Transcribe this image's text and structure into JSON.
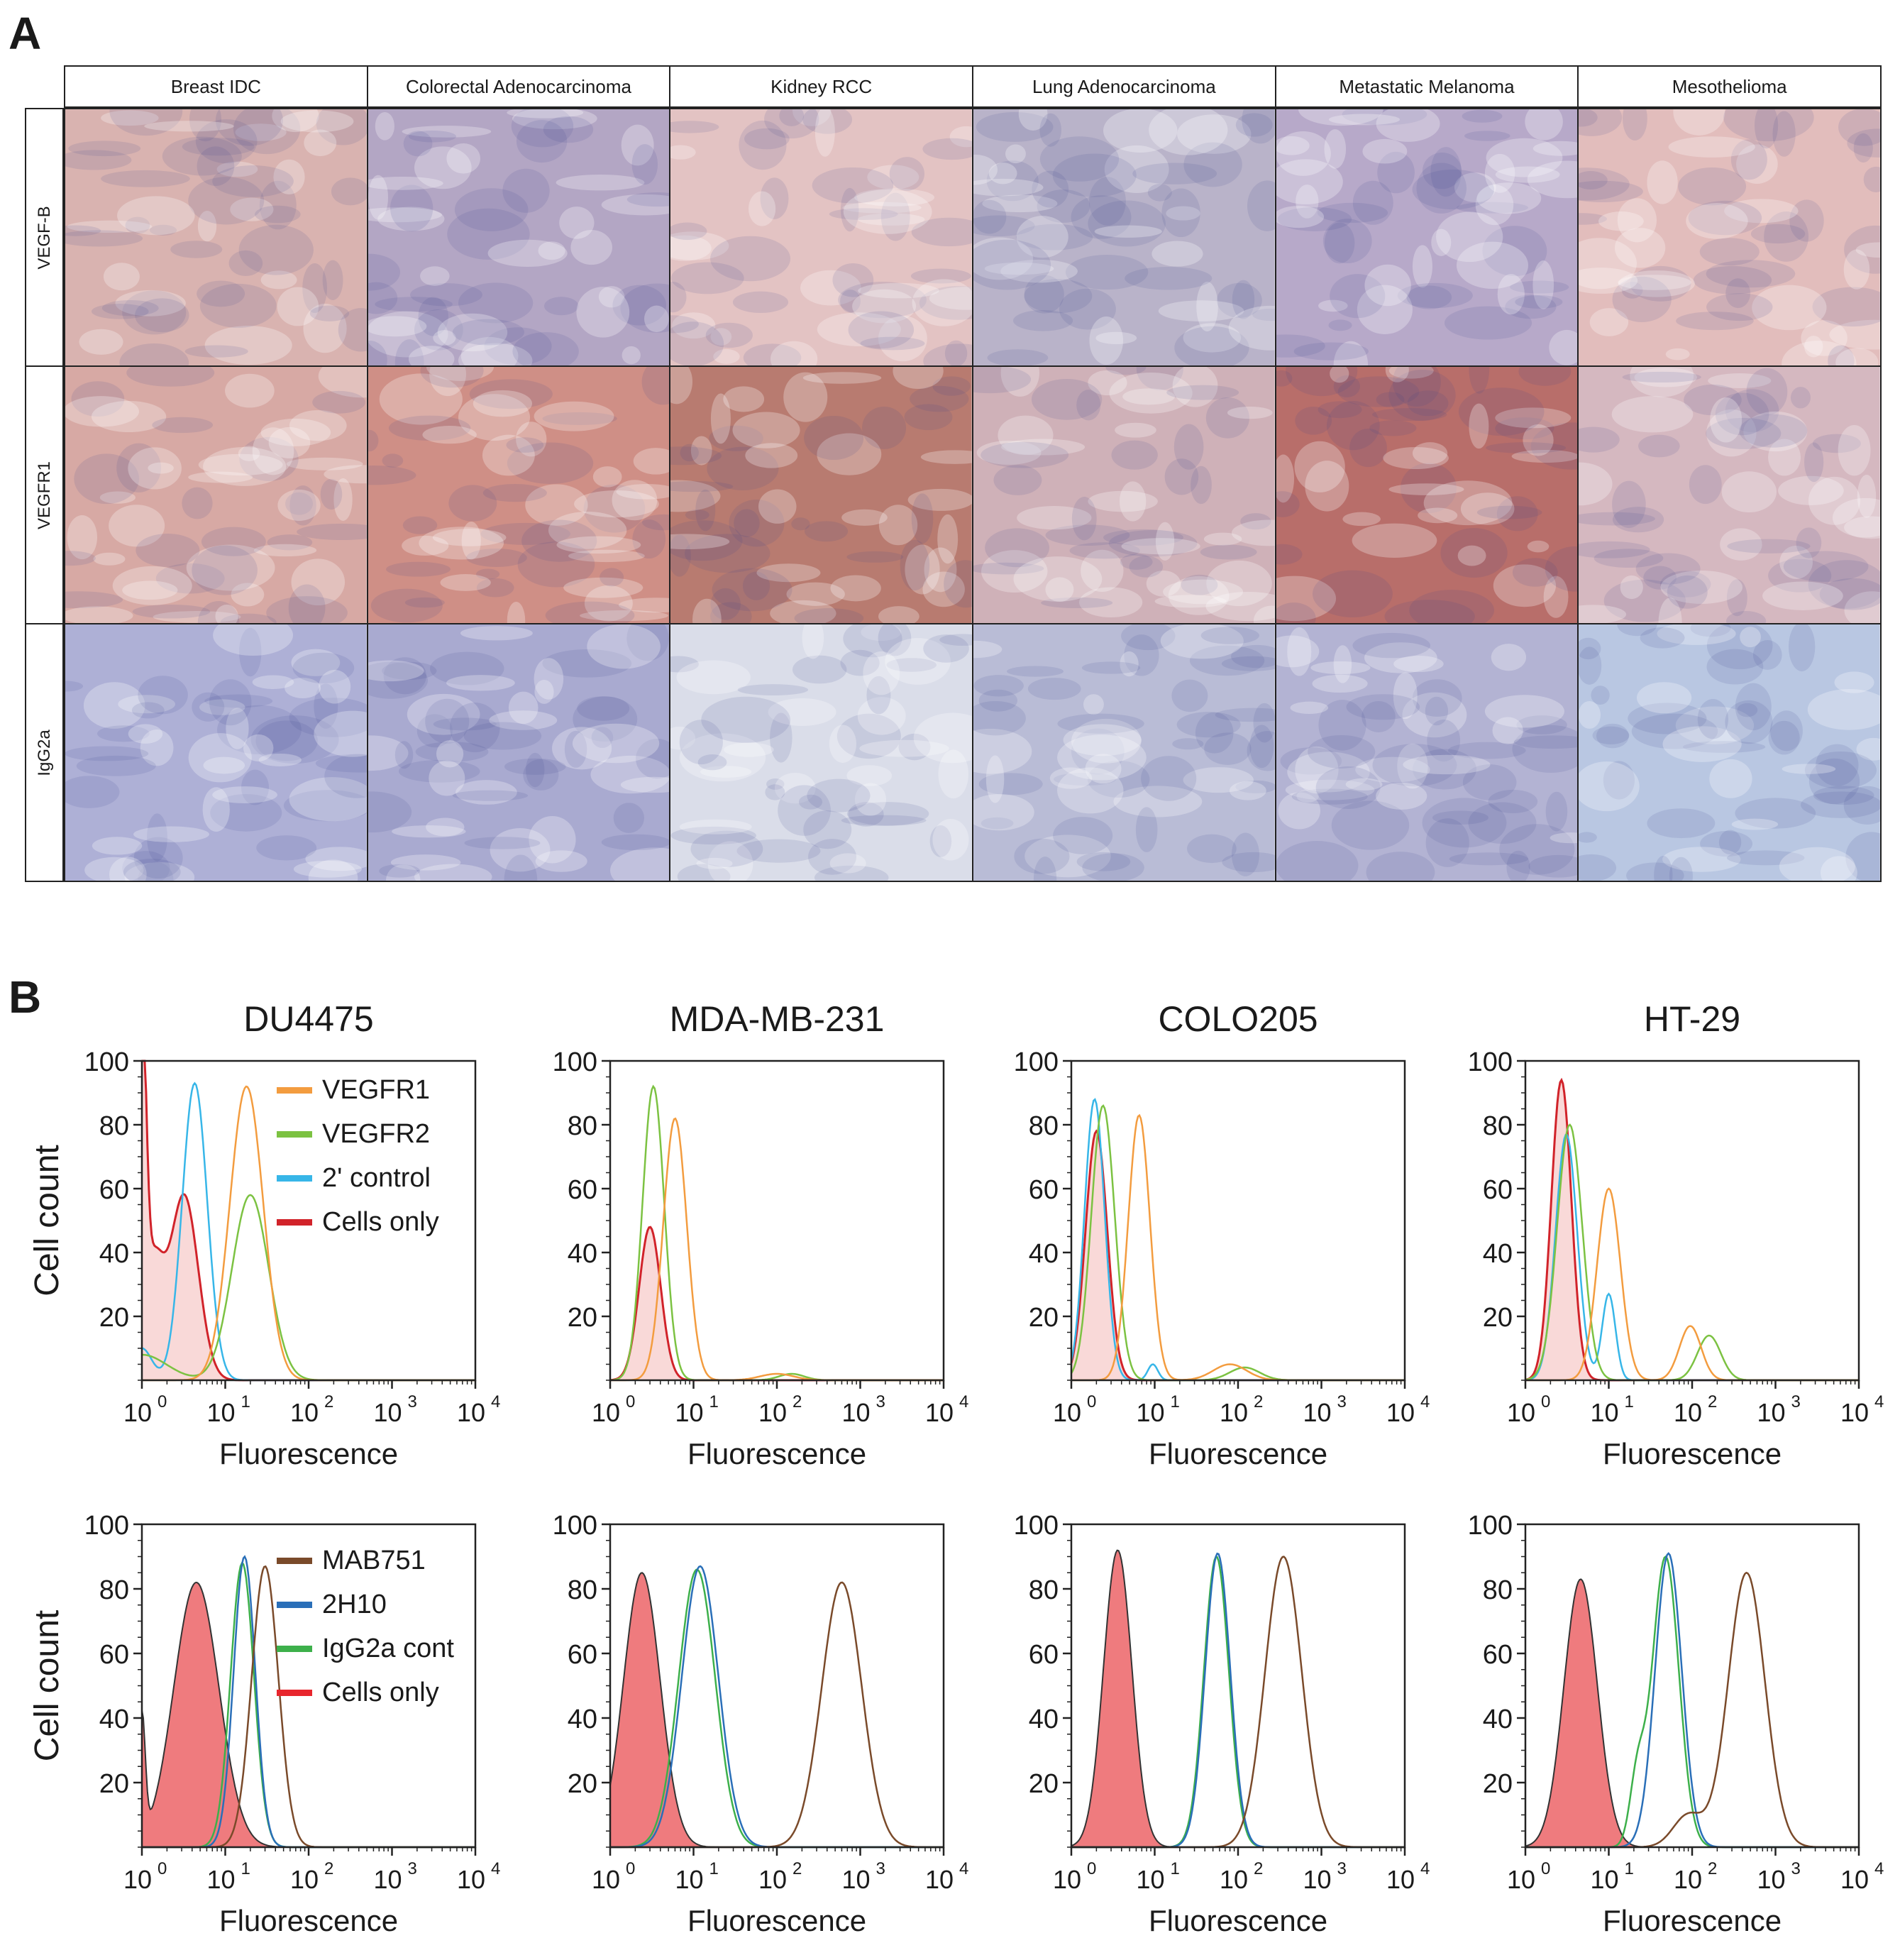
{
  "panel_a": {
    "letter": "A",
    "columns": [
      "Breast IDC",
      "Colorectal Adenocarcinoma",
      "Kidney RCC",
      "Lung Adenocarcinoma",
      "Metastatic Melanoma",
      "Mesothelioma"
    ],
    "rows": [
      "VEGF-B",
      "VEGFR1",
      "IgG2a"
    ],
    "tile_colors": {
      "VEGF-B": [
        "#d9b3b0",
        "#b3a6c4",
        "#e3c3c3",
        "#b9b3c9",
        "#b7a9c9",
        "#e2bdbc"
      ],
      "VEGFR1": [
        "#d7a9a4",
        "#cf8f86",
        "#b87b70",
        "#cfb1b8",
        "#b86e6a",
        "#d5b8c0"
      ],
      "IgG2a": [
        "#aeb0d6",
        "#a9aad0",
        "#dadde9",
        "#b9bcd6",
        "#b3b3d3",
        "#b9c7e2"
      ]
    }
  },
  "panel_b": {
    "letter": "B",
    "y_axis_label": "Cell count",
    "x_axis_label": "Fluorescence",
    "y_ticks": [
      "100",
      "80",
      "60",
      "40",
      "20"
    ],
    "x_ticks": [
      "10",
      "10",
      "10",
      "10",
      "10"
    ],
    "x_tick_exponents": [
      "0",
      "1",
      "2",
      "3",
      "4"
    ],
    "top_legend": [
      {
        "label": "VEGFR1",
        "color": "#f39c3f"
      },
      {
        "label": "VEGFR2",
        "color": "#7cc242"
      },
      {
        "label": "2' control",
        "color": "#37b6e8"
      },
      {
        "label": "Cells only",
        "color": "#d1232a"
      }
    ],
    "bottom_legend": [
      {
        "label": "MAB751",
        "color": "#7a4a2a"
      },
      {
        "label": "2H10",
        "color": "#2a6fb8"
      },
      {
        "label": "IgG2a cont",
        "color": "#3db04b"
      },
      {
        "label": "Cells only",
        "color": "#e8262d"
      }
    ]
  },
  "chart_data": [
    {
      "type": "line",
      "title": "DU4475",
      "row": "top",
      "xlabel": "Fluorescence",
      "ylabel": "Cell count",
      "xscale": "log",
      "xlim": [
        1,
        10000
      ],
      "ylim": [
        0,
        100
      ],
      "series": [
        {
          "name": "Cells only",
          "peaks": [
            [
              1.0,
              100,
              0.05
            ],
            [
              1.35,
              35,
              0.12
            ],
            [
              3.2,
              58,
              0.17
            ]
          ],
          "fill": true
        },
        {
          "name": "2' control",
          "peaks": [
            [
              4.3,
              93,
              0.15
            ],
            [
              1.0,
              10,
              0.12
            ]
          ]
        },
        {
          "name": "VEGFR2",
          "peaks": [
            [
              1.0,
              8,
              0.3
            ],
            [
              20,
              58,
              0.22
            ]
          ]
        },
        {
          "name": "VEGFR1",
          "peaks": [
            [
              18,
              92,
              0.2
            ]
          ]
        }
      ]
    },
    {
      "type": "line",
      "title": "MDA-MB-231",
      "row": "top",
      "xlabel": "Fluorescence",
      "ylabel": "",
      "xscale": "log",
      "xlim": [
        1,
        10000
      ],
      "ylim": [
        0,
        100
      ],
      "series": [
        {
          "name": "Cells only",
          "peaks": [
            [
              3.0,
              48,
              0.13
            ]
          ],
          "fill": true
        },
        {
          "name": "VEGFR2",
          "peaks": [
            [
              3.3,
              92,
              0.13
            ],
            [
              150,
              2,
              0.15
            ]
          ]
        },
        {
          "name": "VEGFR1",
          "peaks": [
            [
              6.0,
              82,
              0.14
            ],
            [
              100,
              2,
              0.2
            ]
          ]
        }
      ]
    },
    {
      "type": "line",
      "title": "COLO205",
      "row": "top",
      "xlabel": "Fluorescence",
      "ylabel": "",
      "xscale": "log",
      "xlim": [
        1,
        10000
      ],
      "ylim": [
        0,
        100
      ],
      "series": [
        {
          "name": "Cells only",
          "peaks": [
            [
              2.0,
              78,
              0.13
            ]
          ],
          "fill": true
        },
        {
          "name": "2' control",
          "peaks": [
            [
              1.9,
              88,
              0.12
            ],
            [
              9.5,
              5,
              0.06
            ]
          ]
        },
        {
          "name": "VEGFR2",
          "peaks": [
            [
              2.4,
              86,
              0.14
            ],
            [
              120,
              4,
              0.18
            ]
          ]
        },
        {
          "name": "VEGFR1",
          "peaks": [
            [
              6.5,
              83,
              0.13
            ],
            [
              80,
              5,
              0.2
            ]
          ]
        }
      ]
    },
    {
      "type": "line",
      "title": "HT-29",
      "row": "top",
      "xlabel": "Fluorescence",
      "ylabel": "",
      "xscale": "log",
      "xlim": [
        1,
        10000
      ],
      "ylim": [
        0,
        100
      ],
      "series": [
        {
          "name": "Cells only",
          "peaks": [
            [
              2.7,
              94,
              0.12
            ]
          ],
          "fill": true
        },
        {
          "name": "2' control",
          "peaks": [
            [
              3.1,
              77,
              0.13
            ],
            [
              10,
              27,
              0.08
            ]
          ]
        },
        {
          "name": "VEGFR2",
          "peaks": [
            [
              3.4,
              80,
              0.15
            ],
            [
              160,
              14,
              0.14
            ]
          ]
        },
        {
          "name": "VEGFR1",
          "peaks": [
            [
              10,
              60,
              0.14
            ],
            [
              95,
              17,
              0.13
            ]
          ]
        }
      ]
    },
    {
      "type": "line",
      "title": "",
      "row": "bottom",
      "xlabel": "Fluorescence",
      "ylabel": "Cell count",
      "xscale": "log",
      "xlim": [
        1,
        10000
      ],
      "ylim": [
        0,
        100
      ],
      "series": [
        {
          "name": "Cells only",
          "peaks": [
            [
              1.0,
              38,
              0.04
            ],
            [
              4.5,
              82,
              0.27
            ]
          ],
          "fill": true
        },
        {
          "name": "IgG2a cont",
          "peaks": [
            [
              16,
              88,
              0.14
            ]
          ]
        },
        {
          "name": "2H10",
          "peaks": [
            [
              17,
              90,
              0.13
            ]
          ]
        },
        {
          "name": "MAB751",
          "peaks": [
            [
              30,
              87,
              0.16
            ]
          ]
        }
      ]
    },
    {
      "type": "line",
      "title": "",
      "row": "bottom",
      "xlabel": "Fluorescence",
      "ylabel": "",
      "xscale": "log",
      "xlim": [
        1,
        10000
      ],
      "ylim": [
        0,
        100
      ],
      "series": [
        {
          "name": "Cells only",
          "peaks": [
            [
              2.4,
              85,
              0.22
            ]
          ],
          "fill": true
        },
        {
          "name": "IgG2a cont",
          "peaks": [
            [
              11,
              86,
              0.22
            ]
          ]
        },
        {
          "name": "2H10",
          "peaks": [
            [
              12,
              87,
              0.22
            ]
          ]
        },
        {
          "name": "MAB751",
          "peaks": [
            [
              600,
              82,
              0.24
            ]
          ]
        }
      ]
    },
    {
      "type": "line",
      "title": "",
      "row": "bottom",
      "xlabel": "Fluorescence",
      "ylabel": "",
      "xscale": "log",
      "xlim": [
        1,
        10000
      ],
      "ylim": [
        0,
        100
      ],
      "series": [
        {
          "name": "Cells only",
          "peaks": [
            [
              3.6,
              92,
              0.17
            ]
          ],
          "fill": true
        },
        {
          "name": "IgG2a cont",
          "peaks": [
            [
              55,
              90,
              0.15
            ]
          ]
        },
        {
          "name": "2H10",
          "peaks": [
            [
              57,
              91,
              0.15
            ]
          ]
        },
        {
          "name": "MAB751",
          "peaks": [
            [
              350,
              90,
              0.22
            ]
          ]
        }
      ]
    },
    {
      "type": "line",
      "title": "",
      "row": "bottom",
      "xlabel": "Fluorescence",
      "ylabel": "",
      "xscale": "log",
      "xlim": [
        1,
        10000
      ],
      "ylim": [
        0,
        100
      ],
      "series": [
        {
          "name": "Cells only",
          "peaks": [
            [
              4.6,
              83,
              0.2
            ]
          ],
          "fill": true
        },
        {
          "name": "IgG2a cont",
          "peaks": [
            [
              22,
              20,
              0.09
            ],
            [
              48,
              90,
              0.16
            ]
          ]
        },
        {
          "name": "2H10",
          "peaks": [
            [
              52,
              91,
              0.16
            ]
          ]
        },
        {
          "name": "MAB751",
          "peaks": [
            [
              90,
              10,
              0.18
            ],
            [
              450,
              85,
              0.22
            ]
          ]
        }
      ]
    }
  ]
}
